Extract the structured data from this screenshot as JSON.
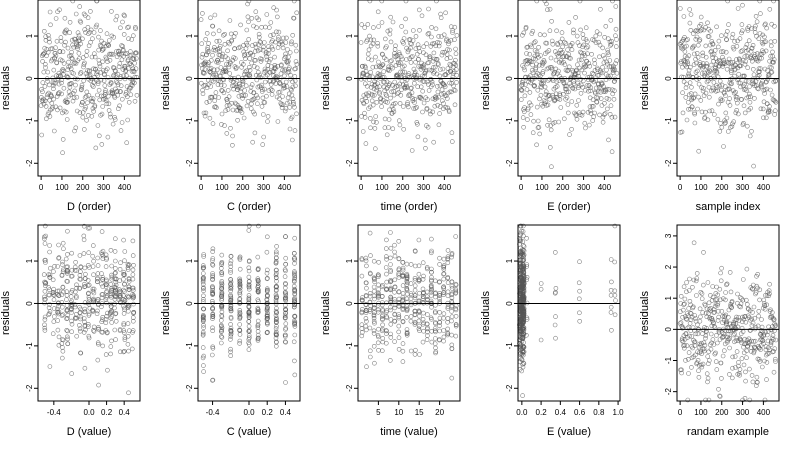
{
  "figure": {
    "colors": {
      "point": "#555555",
      "axis": "#000000",
      "zero_line": "#000000",
      "background": "#ffffff"
    }
  },
  "chart_data": [
    {
      "type": "scatter",
      "ylabel": "residuals",
      "xlabel": "D (order)",
      "xlim": [
        -15,
        475
      ],
      "ylim": [
        -2.3,
        1.85
      ],
      "x_ticks": [
        0,
        100,
        200,
        300,
        400
      ],
      "x_tick_labels": [
        "0",
        "100",
        "200",
        "300",
        "400"
      ],
      "y_ticks": [
        -2,
        -1,
        0,
        1
      ],
      "y_tick_labels": [
        "-2",
        "-1",
        "0",
        "1"
      ],
      "reference_line_y": 0,
      "points": {
        "pattern": "uniform",
        "n": 460,
        "x_range": [
          0,
          460
        ],
        "center": 0.1,
        "spread": 0.65,
        "seed": 11
      }
    },
    {
      "type": "scatter",
      "ylabel": "residuals",
      "xlabel": "C (order)",
      "xlim": [
        -15,
        475
      ],
      "ylim": [
        -2.3,
        1.85
      ],
      "x_ticks": [
        0,
        100,
        200,
        300,
        400
      ],
      "x_tick_labels": [
        "0",
        "100",
        "200",
        "300",
        "400"
      ],
      "y_ticks": [
        -2,
        -1,
        0,
        1
      ],
      "y_tick_labels": [
        "-2",
        "-1",
        "0",
        "1"
      ],
      "reference_line_y": 0,
      "points": {
        "pattern": "uniform",
        "n": 460,
        "x_range": [
          0,
          460
        ],
        "center": 0.1,
        "spread": 0.65,
        "seed": 23
      }
    },
    {
      "type": "scatter",
      "ylabel": "residuals",
      "xlabel": "time (order)",
      "xlim": [
        -15,
        475
      ],
      "ylim": [
        -2.3,
        1.85
      ],
      "x_ticks": [
        0,
        100,
        200,
        300,
        400
      ],
      "x_tick_labels": [
        "0",
        "100",
        "200",
        "300",
        "400"
      ],
      "y_ticks": [
        -2,
        -1,
        0,
        1
      ],
      "y_tick_labels": [
        "-2",
        "-1",
        "0",
        "1"
      ],
      "reference_line_y": 0,
      "points": {
        "pattern": "uniform",
        "n": 460,
        "x_range": [
          0,
          460
        ],
        "center": 0.1,
        "spread": 0.65,
        "seed": 37
      }
    },
    {
      "type": "scatter",
      "ylabel": "residuals",
      "xlabel": "E (order)",
      "xlim": [
        -15,
        475
      ],
      "ylim": [
        -2.3,
        1.85
      ],
      "x_ticks": [
        0,
        100,
        200,
        300,
        400
      ],
      "x_tick_labels": [
        "0",
        "100",
        "200",
        "300",
        "400"
      ],
      "y_ticks": [
        -2,
        -1,
        0,
        1
      ],
      "y_tick_labels": [
        "-2",
        "-1",
        "0",
        "1"
      ],
      "reference_line_y": 0,
      "points": {
        "pattern": "uniform",
        "n": 460,
        "x_range": [
          0,
          460
        ],
        "center": 0.1,
        "spread": 0.65,
        "seed": 41
      }
    },
    {
      "type": "scatter",
      "ylabel": "residuals",
      "xlabel": "sample index",
      "xlim": [
        -15,
        475
      ],
      "ylim": [
        -2.3,
        1.85
      ],
      "x_ticks": [
        0,
        100,
        200,
        300,
        400
      ],
      "x_tick_labels": [
        "0",
        "100",
        "200",
        "300",
        "400"
      ],
      "y_ticks": [
        -2,
        -1,
        0,
        1
      ],
      "y_tick_labels": [
        "-2",
        "-1",
        "0",
        "1"
      ],
      "reference_line_y": 0,
      "points": {
        "pattern": "uniform",
        "n": 460,
        "x_range": [
          0,
          460
        ],
        "center": 0.15,
        "spread": 0.65,
        "seed": 53
      }
    },
    {
      "type": "scatter",
      "ylabel": "residuals",
      "xlabel": "D (value)",
      "xlim": [
        -0.58,
        0.58
      ],
      "ylim": [
        -2.3,
        1.85
      ],
      "x_ticks": [
        -0.4,
        0,
        0.2,
        0.4
      ],
      "x_tick_labels": [
        "-0.4",
        "0.0",
        "0.2",
        "0.4"
      ],
      "y_ticks": [
        -2,
        -1,
        0,
        1
      ],
      "y_tick_labels": [
        "-2",
        "-1",
        "0",
        "1"
      ],
      "reference_line_y": 0,
      "points": {
        "pattern": "columns",
        "n": 460,
        "columns": [
          -0.5,
          -0.45,
          -0.4,
          -0.35,
          -0.3,
          -0.25,
          -0.2,
          -0.15,
          -0.1,
          -0.05,
          0,
          0.05,
          0.1,
          0.15,
          0.2,
          0.25,
          0.3,
          0.35,
          0.4,
          0.45,
          0.5
        ],
        "jitter": 0.01,
        "center": 0.1,
        "spread": 0.65,
        "seed": 61
      }
    },
    {
      "type": "scatter",
      "ylabel": "residuals",
      "xlabel": "C (value)",
      "xlim": [
        -0.56,
        0.56
      ],
      "ylim": [
        -2.3,
        1.85
      ],
      "x_ticks": [
        -0.4,
        0,
        0.2,
        0.4
      ],
      "x_tick_labels": [
        "-0.4",
        "0.0",
        "0.2",
        "0.4"
      ],
      "y_ticks": [
        -2,
        -1,
        0,
        1
      ],
      "y_tick_labels": [
        "-2",
        "-1",
        "0",
        "1"
      ],
      "reference_line_y": 0,
      "points": {
        "pattern": "columns",
        "n": 460,
        "columns": [
          -0.5,
          -0.4,
          -0.3,
          -0.2,
          -0.1,
          0,
          0.1,
          0.2,
          0.3,
          0.4,
          0.5
        ],
        "jitter": 0.004,
        "center": 0.1,
        "spread": 0.65,
        "seed": 71
      }
    },
    {
      "type": "scatter",
      "ylabel": "residuals",
      "xlabel": "time (value)",
      "xlim": [
        0,
        25
      ],
      "ylim": [
        -2.3,
        1.85
      ],
      "x_ticks": [
        5,
        10,
        15,
        20
      ],
      "x_tick_labels": [
        "5",
        "10",
        "15",
        "20"
      ],
      "y_ticks": [
        -2,
        -1,
        0,
        1
      ],
      "y_tick_labels": [
        "-2",
        "-1",
        "0",
        "1"
      ],
      "reference_line_y": 0,
      "points": {
        "pattern": "columns",
        "n": 460,
        "columns": [
          1,
          2,
          3,
          4,
          5,
          6,
          7,
          8,
          9,
          10,
          11,
          12,
          13,
          14,
          15,
          16,
          17,
          18,
          19,
          20,
          21,
          22,
          23,
          24
        ],
        "jitter": 0.08,
        "center": 0.1,
        "spread": 0.65,
        "seed": 83
      }
    },
    {
      "type": "scatter",
      "ylabel": "residuals",
      "xlabel": "E (value)",
      "xlim": [
        -0.04,
        1.02
      ],
      "ylim": [
        -2.3,
        1.85
      ],
      "x_ticks": [
        0,
        0.2,
        0.4,
        0.6,
        0.8,
        1.0
      ],
      "x_tick_labels": [
        "0.0",
        "0.2",
        "0.4",
        "0.6",
        "0.8",
        "1.0"
      ],
      "y_ticks": [
        -2,
        -1,
        0,
        1
      ],
      "y_tick_labels": [
        "-2",
        "-1",
        "0",
        "1"
      ],
      "reference_line_y": 0,
      "points": {
        "pattern": "skewed",
        "n": 460,
        "cluster_x": 0.0,
        "cluster_width": 0.025,
        "cluster_frac": 0.9,
        "tail_x": [
          0.05,
          0.2,
          0.35,
          0.6,
          0.93,
          0.97
        ],
        "center": 0.1,
        "spread": 0.65,
        "seed": 97
      }
    },
    {
      "type": "scatter",
      "ylabel": "residuals",
      "xlabel": "randam example",
      "xlim": [
        -15,
        475
      ],
      "ylim": [
        -2.3,
        3.35
      ],
      "x_ticks": [
        0,
        100,
        200,
        300,
        400
      ],
      "x_tick_labels": [
        "0",
        "100",
        "200",
        "300",
        "400"
      ],
      "y_ticks": [
        -2,
        -1,
        0,
        1,
        2,
        3
      ],
      "y_tick_labels": [
        "-2",
        "-1",
        "0",
        "1",
        "2",
        "3"
      ],
      "reference_line_y": 0,
      "points": {
        "pattern": "uniform",
        "n": 460,
        "x_range": [
          0,
          460
        ],
        "center": 0.05,
        "spread": 0.9,
        "seed": 109
      }
    }
  ]
}
